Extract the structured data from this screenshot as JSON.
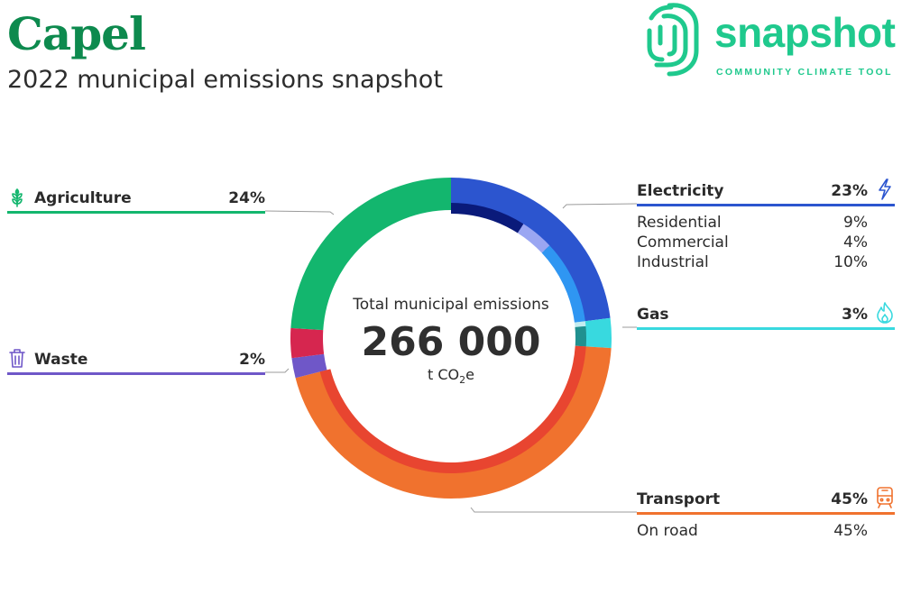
{
  "header": {
    "title": "Capel",
    "subtitle": "2022 municipal emissions snapshot"
  },
  "logo": {
    "word": "snapshot",
    "tagline": "COMMUNITY CLIMATE TOOL",
    "color": "#1fc98d"
  },
  "center": {
    "label": "Total municipal emissions",
    "value": "266 000",
    "unit_main": "t CO",
    "unit_sub": "2",
    "unit_tail": "e"
  },
  "chart_data": {
    "type": "pie",
    "title": "Total municipal emissions",
    "total": 266000,
    "unit": "t CO2e",
    "categories": [
      {
        "name": "Electricity",
        "percent": "23%",
        "value": 23,
        "color": "#2c55cf",
        "icon": "lightning-icon",
        "subcategories": [
          {
            "name": "Residential",
            "percent": "9%",
            "value": 9,
            "color": "#0a1a7a"
          },
          {
            "name": "Commercial",
            "percent": "4%",
            "value": 4,
            "color": "#9aa6f2"
          },
          {
            "name": "Industrial",
            "percent": "10%",
            "value": 10,
            "color": "#2f96f2"
          }
        ]
      },
      {
        "name": "Gas",
        "percent": "3%",
        "value": 3,
        "color": "#38d9df",
        "icon": "flame-icon",
        "subcategories": [
          {
            "name": "",
            "value": 0.6,
            "color": "#c3ecf0"
          },
          {
            "name": "",
            "value": 2.4,
            "color": "#20908f"
          }
        ]
      },
      {
        "name": "Transport",
        "percent": "45%",
        "value": 45,
        "color": "#f0722e",
        "icon": "train-icon",
        "subcategories": [
          {
            "name": "On road",
            "percent": "45%",
            "value": 45,
            "color": "#e84530"
          }
        ]
      },
      {
        "name": "Waste",
        "percent": "2%",
        "value": 2,
        "color": "#6f57c8",
        "icon": "trash-icon",
        "subcategories": []
      },
      {
        "name": "",
        "value": 3,
        "color": "#d6264f",
        "subcategories": []
      },
      {
        "name": "Agriculture",
        "percent": "24%",
        "value": 24,
        "color": "#13b66e",
        "icon": "wheat-icon",
        "subcategories": []
      }
    ]
  }
}
